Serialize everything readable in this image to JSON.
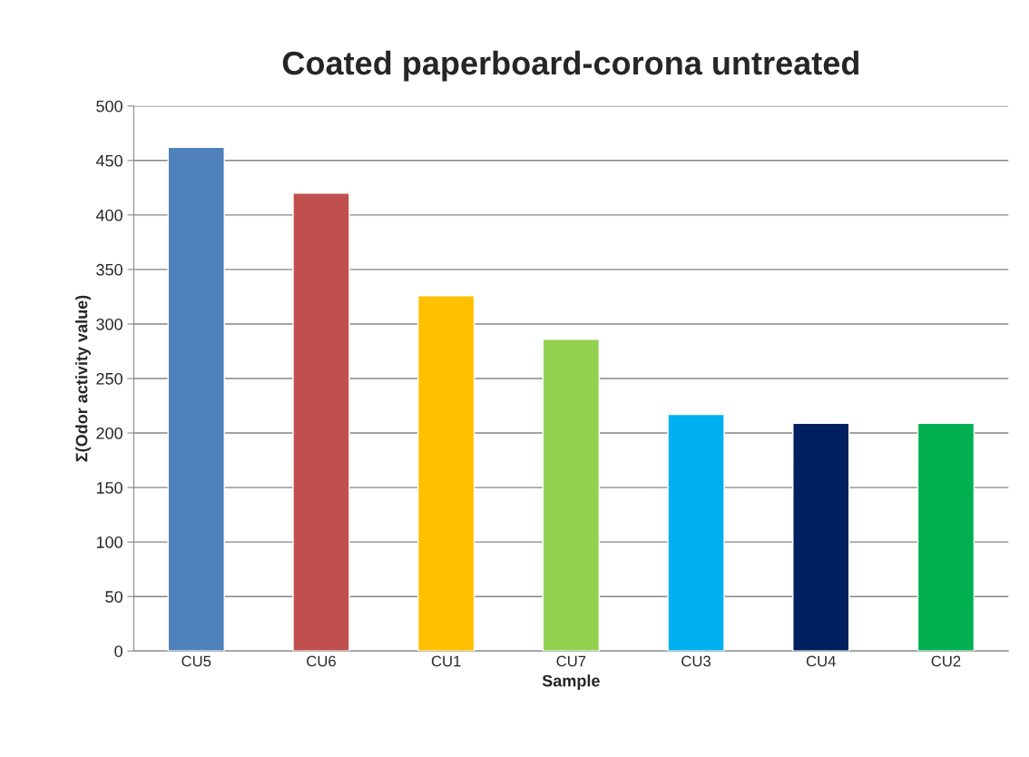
{
  "chart_data": {
    "type": "bar",
    "title": "Coated paperboard-corona untreated",
    "xlabel": "Sample",
    "ylabel": "Σ(Odor activity value)",
    "categories": [
      "CU5",
      "CU6",
      "CU1",
      "CU7",
      "CU3",
      "CU4",
      "CU2"
    ],
    "values": [
      462,
      420,
      326,
      286,
      217,
      209,
      209
    ],
    "colors": [
      "#4f81bd",
      "#c0504d",
      "#ffc000",
      "#92d050",
      "#00b0f0",
      "#002060",
      "#00b050"
    ],
    "ylim": [
      0,
      500
    ],
    "yticks": [
      0,
      50,
      100,
      150,
      200,
      250,
      300,
      350,
      400,
      450,
      500
    ],
    "grid": "y",
    "legend": false
  }
}
